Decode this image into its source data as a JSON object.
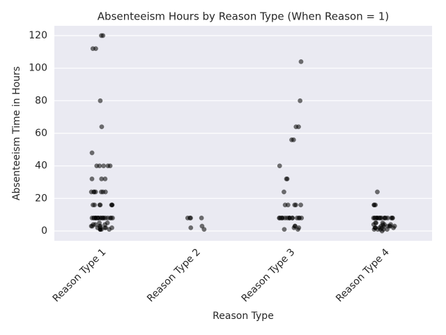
{
  "chart_data": {
    "type": "strip",
    "title": "Absenteeism Hours by Reason Type (When Reason = 1)",
    "x_label": "Reason Type",
    "y_label": "Absenteeism Time in Hours",
    "categories": [
      "Reason Type 1",
      "Reason Type 2",
      "Reason Type 3",
      "Reason Type 4"
    ],
    "values": [
      [
        120,
        120,
        112,
        112,
        80,
        64,
        48,
        40,
        40,
        40,
        40,
        40,
        32,
        32,
        32,
        24,
        24,
        24,
        24,
        24,
        24,
        24,
        16,
        16,
        16,
        16,
        16,
        16,
        16,
        8,
        8,
        8,
        8,
        8,
        8,
        8,
        8,
        8,
        8,
        8,
        8,
        8,
        8,
        8,
        8,
        8,
        8,
        8,
        8,
        5,
        5,
        4,
        4,
        4,
        3,
        3,
        3,
        3,
        2,
        2,
        2,
        2,
        2,
        1,
        1,
        1,
        1,
        1
      ],
      [
        8,
        8,
        8,
        8,
        2,
        3,
        1
      ],
      [
        104,
        80,
        64,
        64,
        56,
        56,
        40,
        32,
        32,
        24,
        16,
        16,
        16,
        16,
        16,
        8,
        8,
        8,
        8,
        8,
        8,
        8,
        8,
        8,
        8,
        8,
        8,
        8,
        8,
        8,
        8,
        3,
        3,
        2,
        2,
        1,
        1
      ],
      [
        24,
        16,
        16,
        16,
        8,
        8,
        8,
        8,
        8,
        8,
        8,
        8,
        8,
        8,
        8,
        8,
        8,
        8,
        8,
        8,
        8,
        5,
        5,
        5,
        4,
        4,
        4,
        4,
        3,
        3,
        3,
        3,
        3,
        3,
        2,
        2,
        2,
        2,
        2,
        2,
        1,
        1,
        1,
        1,
        1,
        0
      ]
    ],
    "color": "#000000",
    "ylim": [
      -6,
      126
    ],
    "yticks": [
      0,
      20,
      40,
      60,
      80,
      100,
      120
    ],
    "grid": true
  }
}
